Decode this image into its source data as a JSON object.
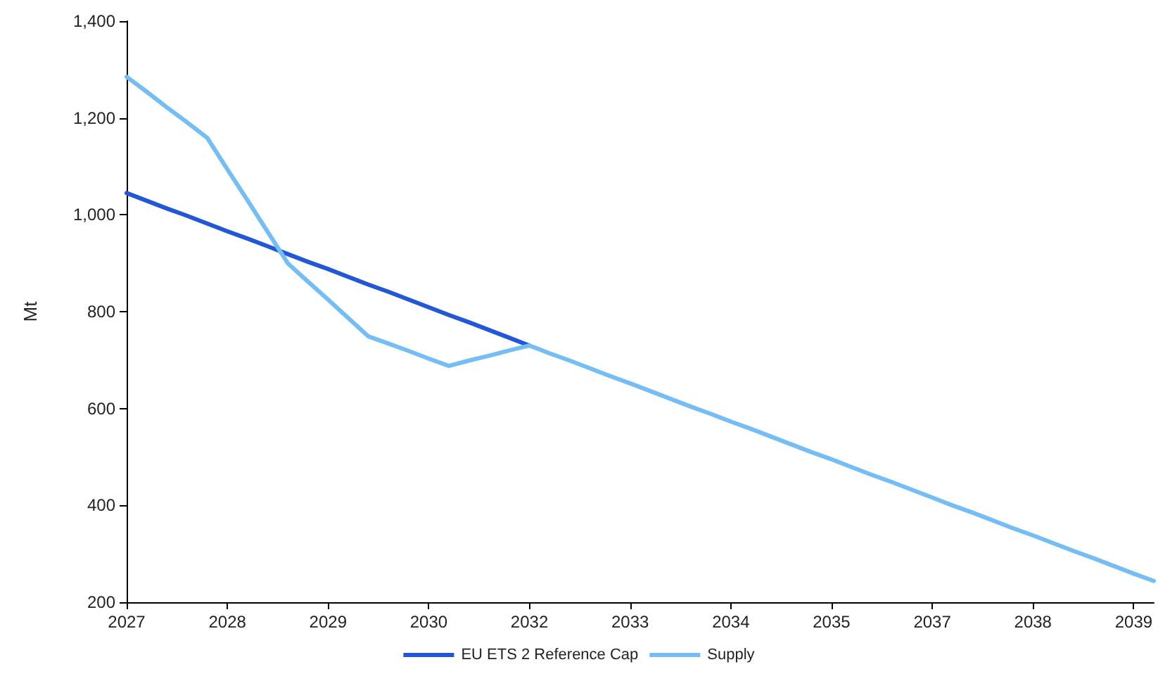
{
  "chart_data": {
    "type": "line",
    "ylabel": "Mt",
    "categories": [
      "2027",
      null,
      null,
      null,
      null,
      "2028",
      null,
      null,
      null,
      null,
      "2029",
      null,
      null,
      null,
      null,
      "2030",
      null,
      null,
      null,
      null,
      "2032",
      null,
      null,
      null,
      null,
      "2033",
      null,
      null,
      null,
      null,
      "2034",
      null,
      null,
      null,
      null,
      "2035",
      null,
      null,
      null,
      null,
      "2037",
      null,
      null,
      null,
      null,
      "2038",
      null,
      null,
      null,
      null,
      "2039",
      null
    ],
    "ylim": [
      200,
      1400
    ],
    "yticks": [
      {
        "value": 200,
        "label": "200"
      },
      {
        "value": 400,
        "label": "400"
      },
      {
        "value": 600,
        "label": "600"
      },
      {
        "value": 800,
        "label": "800"
      },
      {
        "value": 1000,
        "label": "1,000"
      },
      {
        "value": 1200,
        "label": "1,200"
      },
      {
        "value": 1400,
        "label": "1,400"
      }
    ],
    "series": [
      {
        "name": "EU ETS 2 Reference Cap",
        "color": "#2257d8",
        "values": [
          1045,
          1029,
          1013,
          998,
          982,
          966,
          951,
          935,
          919,
          903,
          888,
          872,
          856,
          841,
          825,
          809,
          793,
          778,
          762,
          746,
          730,
          null,
          null,
          null,
          null,
          null,
          null,
          null,
          null,
          null,
          null,
          null,
          null,
          null,
          null,
          null,
          null,
          null,
          null,
          null,
          null,
          null,
          null,
          null,
          null,
          null,
          null,
          null,
          null,
          null,
          null,
          null
        ]
      },
      {
        "name": "Supply",
        "color": "#74bdf5",
        "values": [
          1285,
          1254,
          1222,
          1191,
          1159,
          1094,
          1030,
          965,
          900,
          862,
          825,
          787,
          749,
          734,
          719,
          703,
          688,
          699,
          709,
          720,
          730,
          714,
          699,
          683,
          667,
          652,
          636,
          620,
          604,
          589,
          573,
          558,
          542,
          526,
          510,
          495,
          479,
          463,
          448,
          432,
          416,
          400,
          385,
          369,
          353,
          338,
          322,
          306,
          291,
          275,
          259,
          244
        ]
      }
    ],
    "grid": false,
    "legend": "bottom",
    "marker": "none",
    "line_style": "solid"
  }
}
